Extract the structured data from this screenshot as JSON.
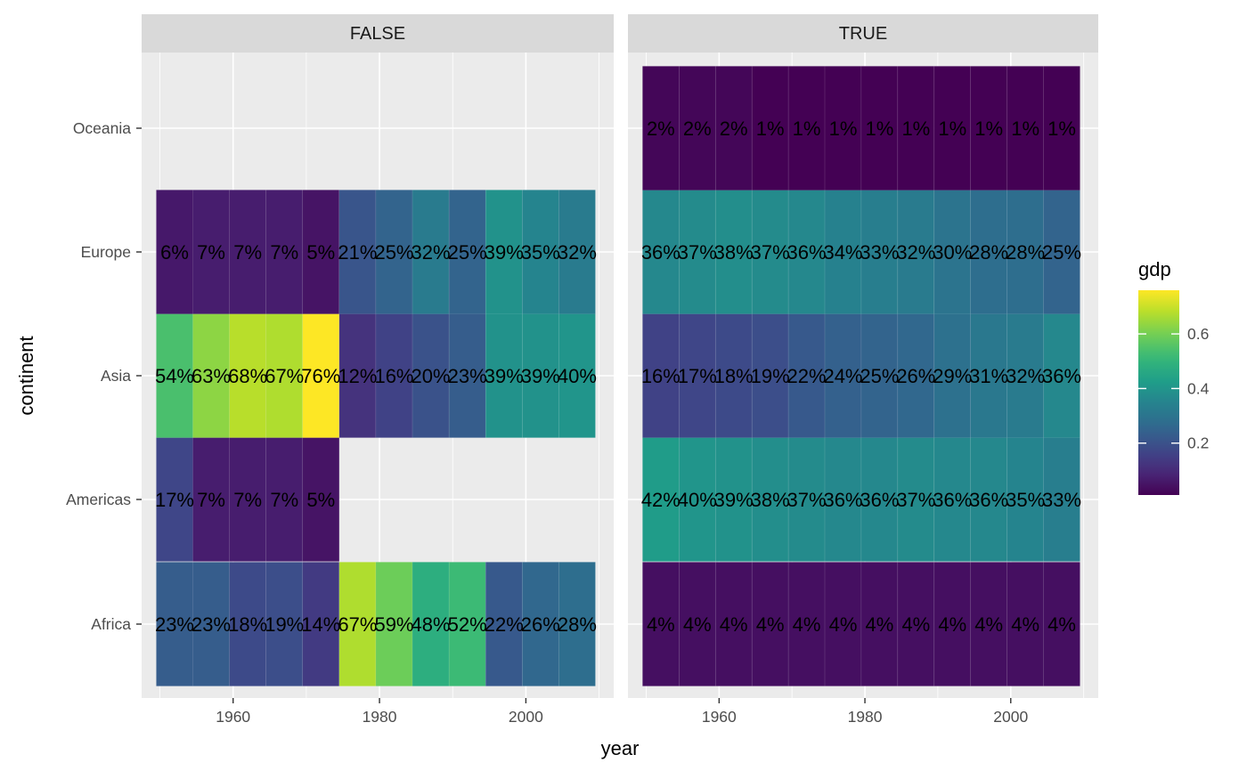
{
  "chart_data": {
    "type": "heatmap",
    "x_var": "year",
    "y_var": "continent",
    "fill_var": "gdp",
    "xlabel": "year",
    "ylabel": "continent",
    "xlim": [
      1947.5,
      2012
    ],
    "xticks": [
      1960,
      1980,
      2000
    ],
    "years": [
      1952,
      1957,
      1962,
      1967,
      1972,
      1977,
      1982,
      1987,
      1992,
      1997,
      2002,
      2007
    ],
    "continents": [
      "Africa",
      "Americas",
      "Asia",
      "Europe",
      "Oceania"
    ],
    "legend": {
      "title": "gdp",
      "ticks": [
        0.2,
        0.4,
        0.6
      ],
      "tick_labels": [
        "0.2",
        "0.4",
        "0.6"
      ],
      "range": [
        0.01,
        0.76
      ],
      "position": "right"
    },
    "panels": [
      {
        "strip": "FALSE",
        "rows": [
          {
            "continent": "Africa",
            "values": [
              0.23,
              0.23,
              0.18,
              0.19,
              0.14,
              0.67,
              0.59,
              0.48,
              0.52,
              0.22,
              0.26,
              0.28
            ]
          },
          {
            "continent": "Americas",
            "values": [
              0.17,
              0.07,
              0.07,
              0.07,
              0.05,
              null,
              null,
              null,
              null,
              null,
              null,
              null
            ]
          },
          {
            "continent": "Asia",
            "values": [
              0.54,
              0.63,
              0.68,
              0.67,
              0.76,
              0.12,
              0.16,
              0.2,
              0.23,
              0.39,
              0.39,
              0.4
            ]
          },
          {
            "continent": "Europe",
            "values": [
              0.06,
              0.07,
              0.07,
              0.07,
              0.05,
              0.21,
              0.25,
              0.32,
              0.25,
              0.39,
              0.35,
              0.32
            ]
          },
          {
            "continent": "Oceania",
            "values": [
              null,
              null,
              null,
              null,
              null,
              null,
              null,
              null,
              null,
              null,
              null,
              null
            ]
          }
        ]
      },
      {
        "strip": "TRUE",
        "rows": [
          {
            "continent": "Africa",
            "values": [
              0.04,
              0.04,
              0.04,
              0.04,
              0.04,
              0.04,
              0.04,
              0.04,
              0.04,
              0.04,
              0.04,
              0.04
            ]
          },
          {
            "continent": "Americas",
            "values": [
              0.42,
              0.4,
              0.39,
              0.38,
              0.37,
              0.36,
              0.36,
              0.37,
              0.36,
              0.36,
              0.35,
              0.33
            ]
          },
          {
            "continent": "Asia",
            "values": [
              0.16,
              0.17,
              0.18,
              0.19,
              0.22,
              0.24,
              0.25,
              0.26,
              0.29,
              0.31,
              0.32,
              0.36
            ]
          },
          {
            "continent": "Europe",
            "values": [
              0.36,
              0.37,
              0.38,
              0.37,
              0.36,
              0.34,
              0.33,
              0.32,
              0.3,
              0.28,
              0.28,
              0.25
            ]
          },
          {
            "continent": "Oceania",
            "values": [
              0.02,
              0.02,
              0.02,
              0.01,
              0.01,
              0.01,
              0.01,
              0.01,
              0.01,
              0.01,
              0.01,
              0.01
            ]
          }
        ]
      }
    ]
  }
}
